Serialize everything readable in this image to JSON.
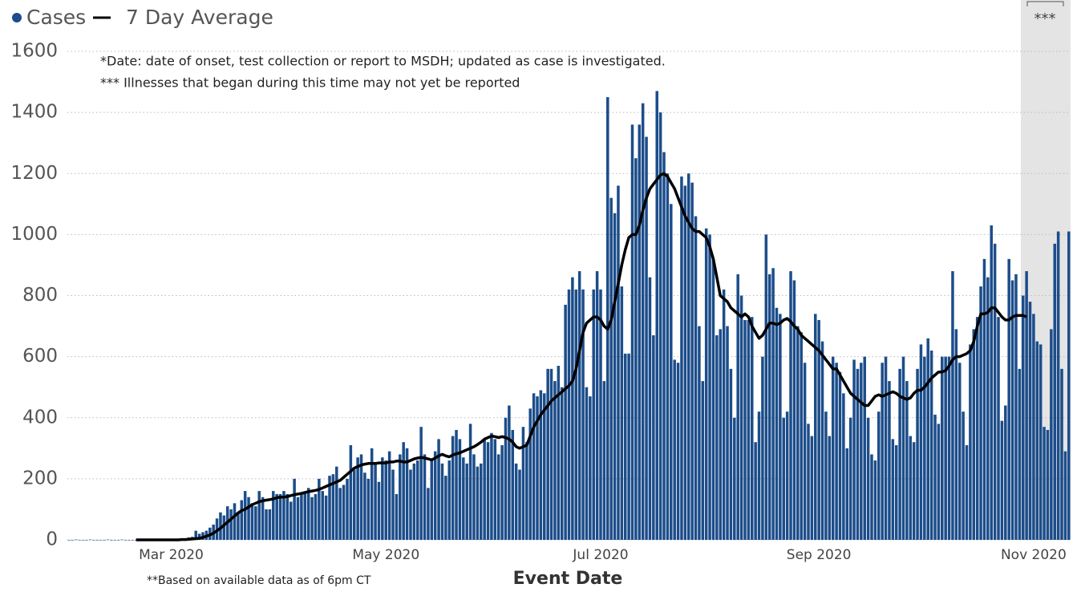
{
  "chart_data": {
    "type": "bar",
    "legend": [
      "Cases",
      "7 Day Average"
    ],
    "notes": [
      "*Date: date of onset, test collection or report to MSDH; updated as case is investigated.",
      "*** Illnesses that began during this time may not yet be reported"
    ],
    "x_label": "Event Date",
    "footnote": "**Based on available data as of 6pm CT",
    "shaded_label": "***",
    "ylim": [
      0,
      1600
    ],
    "yticks": [
      0,
      200,
      400,
      600,
      800,
      1000,
      1200,
      1400,
      1600
    ],
    "grid": true,
    "categories": [
      null,
      null,
      null,
      null,
      null,
      null,
      null,
      null,
      null,
      null,
      null,
      null,
      null,
      null,
      null,
      null,
      null,
      null,
      null,
      null,
      null,
      null,
      null,
      null,
      null,
      null,
      null,
      null,
      null,
      "Mar 2020",
      null,
      null,
      null,
      null,
      null,
      null,
      null,
      null,
      null,
      null,
      null,
      null,
      null,
      null,
      null,
      null,
      null,
      null,
      null,
      null,
      null,
      null,
      null,
      null,
      null,
      null,
      null,
      null,
      null,
      null,
      null,
      null,
      null,
      null,
      null,
      null,
      null,
      null,
      null,
      null,
      null,
      null,
      null,
      null,
      null,
      null,
      null,
      null,
      null,
      null,
      null,
      null,
      null,
      null,
      null,
      null,
      null,
      null,
      null,
      null,
      "May 2020",
      null,
      null,
      null,
      null,
      null,
      null,
      null,
      null,
      null,
      null,
      null,
      null,
      null,
      null,
      null,
      null,
      null,
      null,
      null,
      null,
      null,
      null,
      null,
      null,
      null,
      null,
      null,
      null,
      null,
      null,
      null,
      null,
      null,
      null,
      null,
      null,
      null,
      null,
      null,
      null,
      null,
      null,
      null,
      null,
      null,
      null,
      null,
      null,
      null,
      null,
      null,
      null,
      null,
      null,
      null,
      null,
      null,
      null,
      null,
      null,
      "Jul 2020",
      null,
      null,
      null,
      null,
      null,
      null,
      null,
      null,
      null,
      null,
      null,
      null,
      null,
      null,
      null,
      null,
      null,
      null,
      null,
      null,
      null,
      null,
      null,
      null,
      null,
      null,
      null,
      null,
      null,
      null,
      null,
      null,
      null,
      null,
      null,
      null,
      null,
      null,
      null,
      null,
      null,
      null,
      null,
      null,
      null,
      null,
      null,
      null,
      null,
      null,
      null,
      null,
      null,
      null,
      null,
      null,
      null,
      null,
      null,
      null,
      null,
      "Sep 2020",
      null,
      null,
      null,
      null,
      null,
      null,
      null,
      null,
      null,
      null,
      null,
      null,
      null,
      null,
      null,
      null,
      null,
      null,
      null,
      null,
      null,
      null,
      null,
      null,
      null,
      null,
      null,
      null,
      null,
      null,
      null,
      null,
      null,
      null,
      null,
      null,
      null,
      null,
      null,
      null,
      null,
      null,
      null,
      null,
      null,
      null,
      null,
      null,
      null,
      null,
      null,
      null,
      null,
      null,
      null,
      null,
      null,
      null,
      null,
      null,
      "Nov 2020",
      null,
      null,
      null,
      null,
      null,
      null,
      null,
      null,
      null,
      null
    ],
    "series": [
      {
        "name": "Cases",
        "type": "bar",
        "color": "#1c4d8a",
        "values": [
          0,
          0,
          1,
          0,
          0,
          0,
          1,
          0,
          0,
          0,
          0,
          1,
          0,
          0,
          0,
          1,
          0,
          0,
          0,
          0,
          0,
          0,
          0,
          0,
          0,
          0,
          1,
          0,
          0,
          1,
          2,
          2,
          3,
          5,
          8,
          10,
          30,
          20,
          25,
          30,
          40,
          50,
          70,
          90,
          80,
          110,
          100,
          120,
          90,
          130,
          160,
          140,
          120,
          110,
          160,
          140,
          100,
          100,
          160,
          150,
          150,
          160,
          150,
          125,
          200,
          140,
          150,
          155,
          170,
          140,
          150,
          200,
          160,
          145,
          210,
          215,
          240,
          170,
          180,
          200,
          310,
          230,
          270,
          280,
          220,
          200,
          300,
          250,
          190,
          270,
          260,
          290,
          230,
          150,
          280,
          320,
          300,
          230,
          250,
          260,
          370,
          280,
          170,
          260,
          290,
          330,
          250,
          210,
          260,
          340,
          360,
          330,
          270,
          250,
          380,
          280,
          240,
          250,
          330,
          320,
          350,
          330,
          280,
          310,
          400,
          440,
          360,
          250,
          230,
          370,
          320,
          430,
          480,
          470,
          490,
          480,
          560,
          560,
          520,
          570,
          500,
          770,
          820,
          860,
          820,
          880,
          820,
          500,
          470,
          820,
          880,
          820,
          520,
          1450,
          1120,
          1070,
          1160,
          830,
          610,
          610,
          1360,
          1250,
          1360,
          1430,
          1320,
          860,
          670,
          1470,
          1400,
          1270,
          1200,
          1100,
          590,
          580,
          1190,
          1160,
          1200,
          1170,
          1060,
          700,
          520,
          1020,
          1000,
          920,
          670,
          690,
          820,
          700,
          560,
          400,
          870,
          800,
          720,
          720,
          730,
          320,
          420,
          600,
          1000,
          870,
          890,
          760,
          740,
          400,
          420,
          880,
          850,
          700,
          680,
          580,
          380,
          340,
          740,
          720,
          650,
          420,
          340,
          600,
          580,
          550,
          480,
          300,
          400,
          590,
          560,
          580,
          600,
          400,
          280,
          260,
          420,
          580,
          600,
          520,
          330,
          310,
          560,
          600,
          520,
          340,
          320,
          560,
          640,
          600,
          660,
          620,
          410,
          380,
          600,
          600,
          600,
          880,
          690,
          580,
          420,
          310,
          640,
          690,
          730,
          830,
          920,
          860,
          1030,
          970,
          730,
          390,
          440,
          920,
          850,
          870,
          560,
          800,
          880,
          780,
          740,
          650,
          640,
          370,
          360,
          690,
          970,
          1010,
          560,
          290,
          1010
        ]
      },
      {
        "name": "7 Day Average",
        "type": "line",
        "color": "#000000",
        "values": [
          null,
          null,
          null,
          null,
          null,
          null,
          null,
          null,
          null,
          null,
          null,
          null,
          null,
          null,
          null,
          null,
          null,
          null,
          null,
          0,
          0,
          0,
          0,
          0,
          0,
          0,
          0,
          0,
          0,
          0,
          0,
          0,
          1,
          1,
          2,
          3,
          4,
          5,
          8,
          12,
          16,
          22,
          30,
          38,
          48,
          58,
          68,
          78,
          88,
          96,
          100,
          108,
          115,
          120,
          125,
          128,
          130,
          132,
          134,
          138,
          140,
          140,
          142,
          145,
          148,
          150,
          152,
          155,
          158,
          160,
          162,
          165,
          170,
          175,
          180,
          185,
          190,
          195,
          205,
          215,
          225,
          235,
          240,
          245,
          248,
          250,
          250,
          250,
          252,
          252,
          252,
          255,
          255,
          258,
          258,
          255,
          255,
          260,
          265,
          268,
          270,
          268,
          265,
          262,
          268,
          275,
          280,
          275,
          272,
          278,
          282,
          285,
          290,
          295,
          300,
          305,
          312,
          320,
          330,
          335,
          340,
          338,
          335,
          338,
          335,
          330,
          320,
          305,
          300,
          305,
          310,
          340,
          370,
          390,
          410,
          425,
          440,
          455,
          465,
          475,
          485,
          495,
          505,
          520,
          560,
          620,
          680,
          710,
          720,
          730,
          730,
          720,
          700,
          690,
          720,
          780,
          840,
          900,
          950,
          990,
          1000,
          1000,
          1030,
          1080,
          1120,
          1150,
          1165,
          1180,
          1195,
          1200,
          1190,
          1170,
          1150,
          1120,
          1090,
          1060,
          1040,
          1020,
          1010,
          1010,
          1000,
          990,
          960,
          920,
          860,
          800,
          790,
          780,
          760,
          750,
          740,
          730,
          740,
          730,
          700,
          680,
          660,
          670,
          690,
          710,
          710,
          705,
          710,
          720,
          725,
          715,
          700,
          690,
          670,
          660,
          650,
          640,
          630,
          620,
          605,
          590,
          575,
          560,
          560,
          540,
          520,
          500,
          480,
          470,
          460,
          450,
          440,
          440,
          455,
          470,
          475,
          470,
          475,
          480,
          485,
          480,
          470,
          465,
          460,
          465,
          480,
          490,
          490,
          500,
          515,
          530,
          540,
          550,
          550,
          555,
          570,
          590,
          600,
          600,
          605,
          610,
          620,
          650,
          700,
          740,
          740,
          745,
          760,
          760,
          745,
          730,
          720,
          720,
          730,
          735,
          735,
          735,
          730,
          null,
          null,
          null,
          null,
          null,
          null,
          null,
          null,
          null,
          null,
          null,
          null
        ]
      }
    ]
  }
}
